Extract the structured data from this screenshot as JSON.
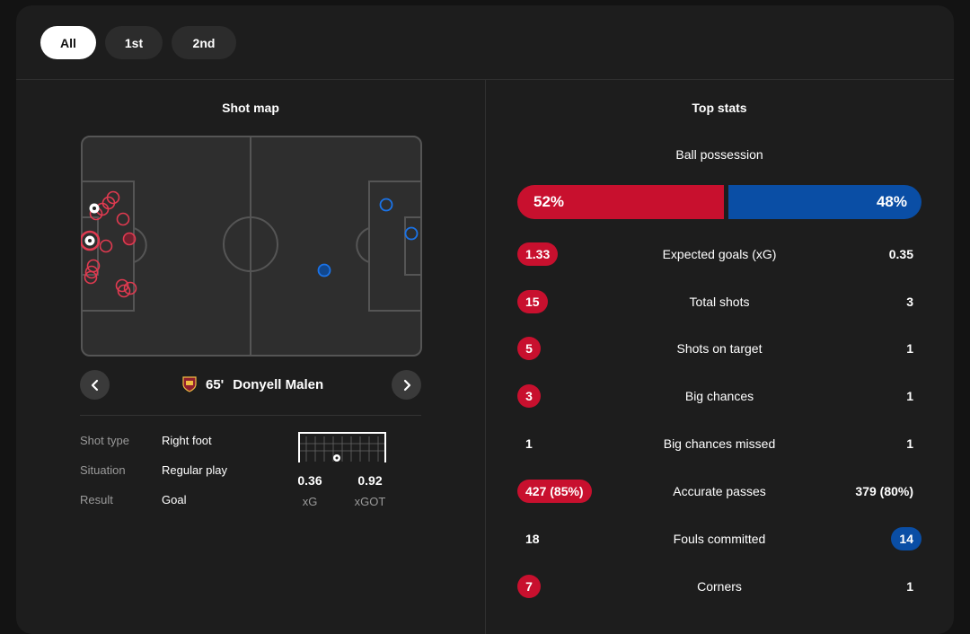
{
  "period_tabs": [
    {
      "label": "All",
      "active": true
    },
    {
      "label": "1st",
      "active": false
    },
    {
      "label": "2nd",
      "active": false
    }
  ],
  "shot_map": {
    "title": "Shot map",
    "selected_shot": {
      "minute": "65'",
      "player": "Donyell Malen",
      "team_badge": "roma-crest-icon"
    },
    "details": [
      {
        "label": "Shot type",
        "value": "Right foot"
      },
      {
        "label": "Situation",
        "value": "Regular play"
      },
      {
        "label": "Result",
        "value": "Goal"
      }
    ],
    "xg": {
      "value": "0.36",
      "label": "xG"
    },
    "xgot": {
      "value": "0.92",
      "label": "xGOT"
    }
  },
  "top_stats": {
    "title": "Top stats",
    "possession": {
      "label": "Ball possession",
      "home": "52%",
      "away": "48%",
      "home_fraction": 0.52
    },
    "rows": [
      {
        "label": "Expected goals (xG)",
        "home": "1.33",
        "away": "0.35",
        "highlight": "home"
      },
      {
        "label": "Total shots",
        "home": "15",
        "away": "3",
        "highlight": "home"
      },
      {
        "label": "Shots on target",
        "home": "5",
        "away": "1",
        "highlight": "home"
      },
      {
        "label": "Big chances",
        "home": "3",
        "away": "1",
        "highlight": "home"
      },
      {
        "label": "Big chances missed",
        "home": "1",
        "away": "1",
        "highlight": "none"
      },
      {
        "label": "Accurate passes",
        "home": "427 (85%)",
        "away": "379 (80%)",
        "highlight": "home"
      },
      {
        "label": "Fouls committed",
        "home": "18",
        "away": "14",
        "highlight": "away"
      },
      {
        "label": "Corners",
        "home": "7",
        "away": "1",
        "highlight": "home"
      }
    ]
  },
  "colors": {
    "home": "#c8102e",
    "away": "#0a4ea5",
    "background": "#1d1d1d"
  }
}
